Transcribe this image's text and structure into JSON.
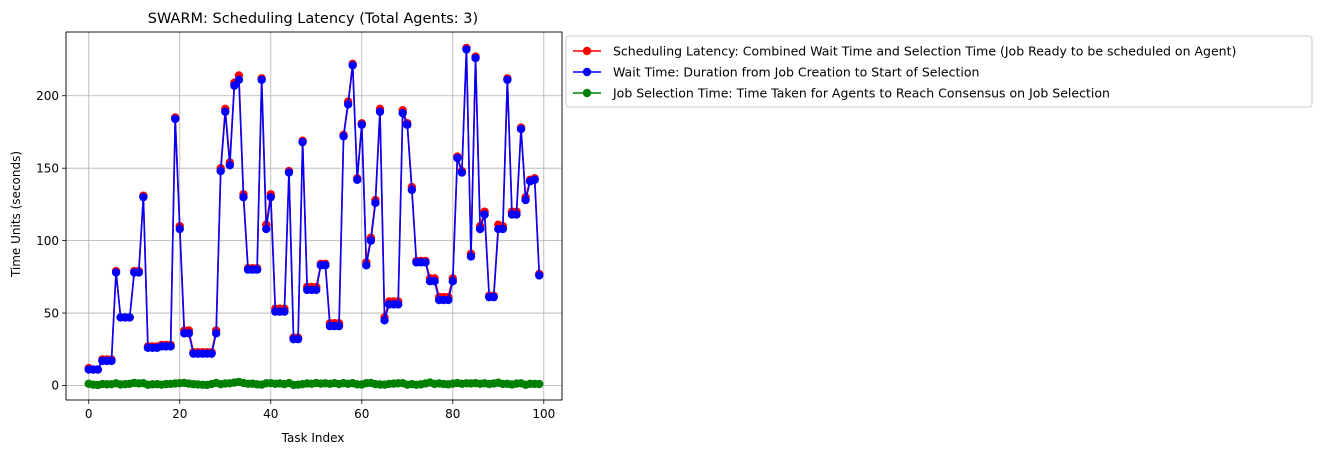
{
  "chart_data": {
    "type": "line",
    "title": "SWARM: Scheduling Latency (Total Agents: 3)",
    "xlabel": "Task Index",
    "ylabel": "Time Units (seconds)",
    "xlim": [
      -5,
      104
    ],
    "ylim": [
      -10,
      244
    ],
    "xticks": [
      0,
      20,
      40,
      60,
      80,
      100
    ],
    "yticks": [
      0,
      50,
      100,
      150,
      200
    ],
    "grid": true,
    "legend_position": "outside upper-right",
    "x": [
      0,
      1,
      2,
      3,
      4,
      5,
      6,
      7,
      8,
      9,
      10,
      11,
      12,
      13,
      14,
      15,
      16,
      17,
      18,
      19,
      20,
      21,
      22,
      23,
      24,
      25,
      26,
      27,
      28,
      29,
      30,
      31,
      32,
      33,
      34,
      35,
      36,
      37,
      38,
      39,
      40,
      41,
      42,
      43,
      44,
      45,
      46,
      47,
      48,
      49,
      50,
      51,
      52,
      53,
      54,
      55,
      56,
      57,
      58,
      59,
      60,
      61,
      62,
      63,
      64,
      65,
      66,
      67,
      68,
      69,
      70,
      71,
      72,
      73,
      74,
      75,
      76,
      77,
      78,
      79,
      80,
      81,
      82,
      83,
      84,
      85,
      86,
      87,
      88,
      89,
      90,
      91,
      92,
      93,
      94,
      95,
      96,
      97,
      98,
      99
    ],
    "series": [
      {
        "name": "Scheduling Latency: Combined Wait Time and Selection Time (Job Ready to be scheduled on Agent)",
        "color": "#ff0000",
        "values": [
          12,
          11,
          11,
          18,
          18,
          18,
          79,
          47,
          47,
          47,
          79,
          79,
          131,
          27,
          27,
          27,
          28,
          28,
          28,
          185,
          110,
          38,
          38,
          23,
          23,
          23,
          23,
          23,
          38,
          150,
          191,
          154,
          209,
          214,
          132,
          81,
          81,
          81,
          212,
          111,
          132,
          53,
          53,
          53,
          148,
          33,
          33,
          169,
          68,
          68,
          68,
          84,
          84,
          43,
          43,
          43,
          173,
          196,
          222,
          143,
          181,
          85,
          102,
          128,
          191,
          47,
          58,
          58,
          58,
          190,
          181,
          137,
          86,
          86,
          86,
          74,
          74,
          61,
          61,
          61,
          74,
          158,
          148,
          233,
          91,
          227,
          110,
          120,
          62,
          62,
          111,
          110,
          212,
          120,
          120,
          178,
          130,
          142,
          143,
          77
        ]
      },
      {
        "name": "Wait Time: Duration from Job Creation to Start of Selection",
        "color": "#0000ff",
        "values": [
          11,
          11,
          11,
          17,
          17,
          17,
          78,
          47,
          47,
          47,
          78,
          78,
          130,
          26,
          26,
          26,
          27,
          27,
          27,
          184,
          108,
          36,
          36,
          22,
          22,
          22,
          22,
          22,
          36,
          148,
          189,
          152,
          207,
          211,
          130,
          80,
          80,
          80,
          211,
          108,
          130,
          51,
          51,
          51,
          147,
          32,
          32,
          168,
          66,
          66,
          66,
          83,
          83,
          41,
          41,
          41,
          172,
          194,
          221,
          142,
          180,
          83,
          100,
          126,
          189,
          45,
          56,
          56,
          56,
          188,
          180,
          135,
          85,
          85,
          85,
          72,
          72,
          59,
          59,
          59,
          72,
          157,
          147,
          232,
          89,
          226,
          108,
          118,
          61,
          61,
          108,
          108,
          211,
          118,
          118,
          177,
          128,
          141,
          142,
          76
        ]
      },
      {
        "name": "Job Selection Time: Time Taken for Agents to Reach Consensus on Job Selection",
        "color": "#008000",
        "values": [
          1.2,
          0.6,
          0.3,
          1.0,
          0.8,
          0.9,
          1.5,
          0.7,
          0.9,
          1.2,
          1.8,
          1.4,
          1.6,
          0.5,
          0.8,
          0.9,
          0.6,
          1.0,
          1.1,
          1.4,
          1.6,
          1.8,
          1.3,
          0.9,
          0.7,
          0.5,
          0.4,
          1.0,
          1.8,
          0.9,
          1.4,
          1.5,
          2.0,
          2.5,
          1.7,
          1.2,
          1.3,
          0.8,
          0.6,
          1.5,
          1.6,
          1.2,
          1.4,
          0.9,
          1.7,
          0.4,
          0.6,
          0.9,
          1.4,
          1.2,
          1.7,
          1.3,
          1.5,
          1.2,
          1.6,
          1.0,
          1.6,
          1.2,
          1.6,
          0.8,
          0.7,
          1.6,
          1.8,
          0.9,
          0.7,
          0.6,
          1.1,
          1.3,
          1.5,
          1.6,
          0.6,
          0.9,
          0.5,
          0.8,
          1.4,
          2.0,
          1.1,
          1.4,
          1.0,
          0.8,
          1.3,
          1.7,
          1.2,
          1.5,
          1.4,
          1.6,
          1.2,
          1.5,
          1.0,
          1.4,
          1.9,
          1.1,
          1.2,
          0.7,
          1.3,
          1.5,
          0.5,
          1.2,
          1.1,
          1.0
        ]
      }
    ]
  }
}
